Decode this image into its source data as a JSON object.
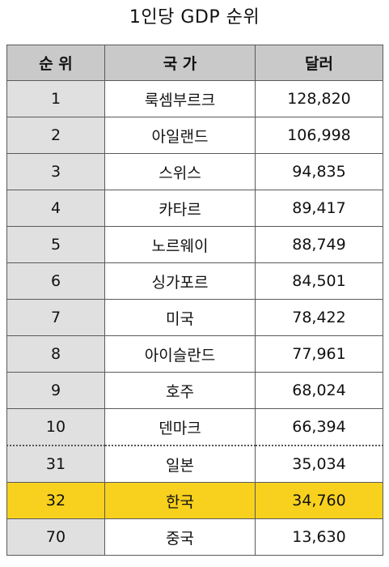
{
  "chart_data": {
    "type": "table",
    "title": "1인당 GDP 순위",
    "columns": [
      "순 위",
      "국 가",
      "달러"
    ],
    "rows": [
      {
        "rank": "1",
        "country": "룩셈부르크",
        "usd": "128,820"
      },
      {
        "rank": "2",
        "country": "아일랜드",
        "usd": "106,998"
      },
      {
        "rank": "3",
        "country": "스위스",
        "usd": "94,835"
      },
      {
        "rank": "4",
        "country": "카타르",
        "usd": "89,417"
      },
      {
        "rank": "5",
        "country": "노르웨이",
        "usd": "88,749"
      },
      {
        "rank": "6",
        "country": "싱가포르",
        "usd": "84,501"
      },
      {
        "rank": "7",
        "country": "미국",
        "usd": "78,422"
      },
      {
        "rank": "8",
        "country": "아이슬란드",
        "usd": "77,961"
      },
      {
        "rank": "9",
        "country": "호주",
        "usd": "68,024"
      },
      {
        "rank": "10",
        "country": "덴마크",
        "usd": "66,394"
      },
      {
        "rank": "31",
        "country": "일본",
        "usd": "35,034"
      },
      {
        "rank": "32",
        "country": "한국",
        "usd": "34,760"
      },
      {
        "rank": "70",
        "country": "중국",
        "usd": "13,630"
      }
    ],
    "highlight_row": 11,
    "separator_before_row": 10,
    "colors": {
      "header": "#c9c9c9",
      "rank_column": "#e0e0e0",
      "highlight": "#f7d11e"
    }
  }
}
